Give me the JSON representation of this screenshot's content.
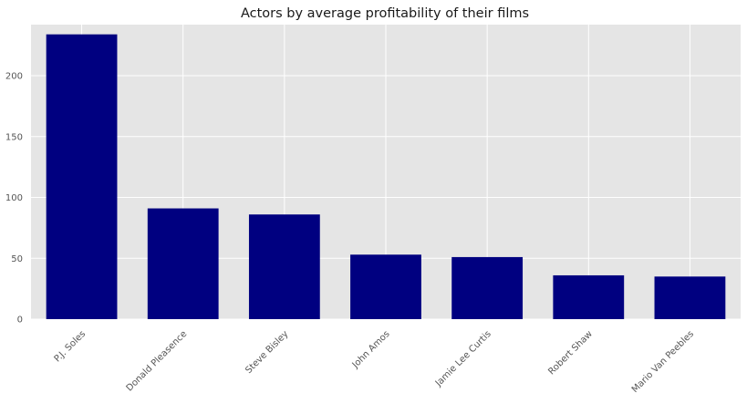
{
  "chart_data": {
    "type": "bar",
    "title": "Actors by average profitability of their films",
    "xlabel": "",
    "ylabel": "",
    "categories": [
      "P.J. Soles",
      "Donald Pleasence",
      "Steve Bisley",
      "John Amos",
      "Jamie Lee Curtis",
      "Robert Shaw",
      "Mario Van Peebles"
    ],
    "values": [
      234,
      91,
      86,
      53,
      51,
      36,
      35
    ],
    "ylim": [
      0,
      242
    ],
    "yticks": [
      0,
      50,
      100,
      150,
      200
    ],
    "grid": true,
    "bar_color": "#000080",
    "plot_background": "#e5e5e5",
    "grid_color": "#ffffff"
  }
}
